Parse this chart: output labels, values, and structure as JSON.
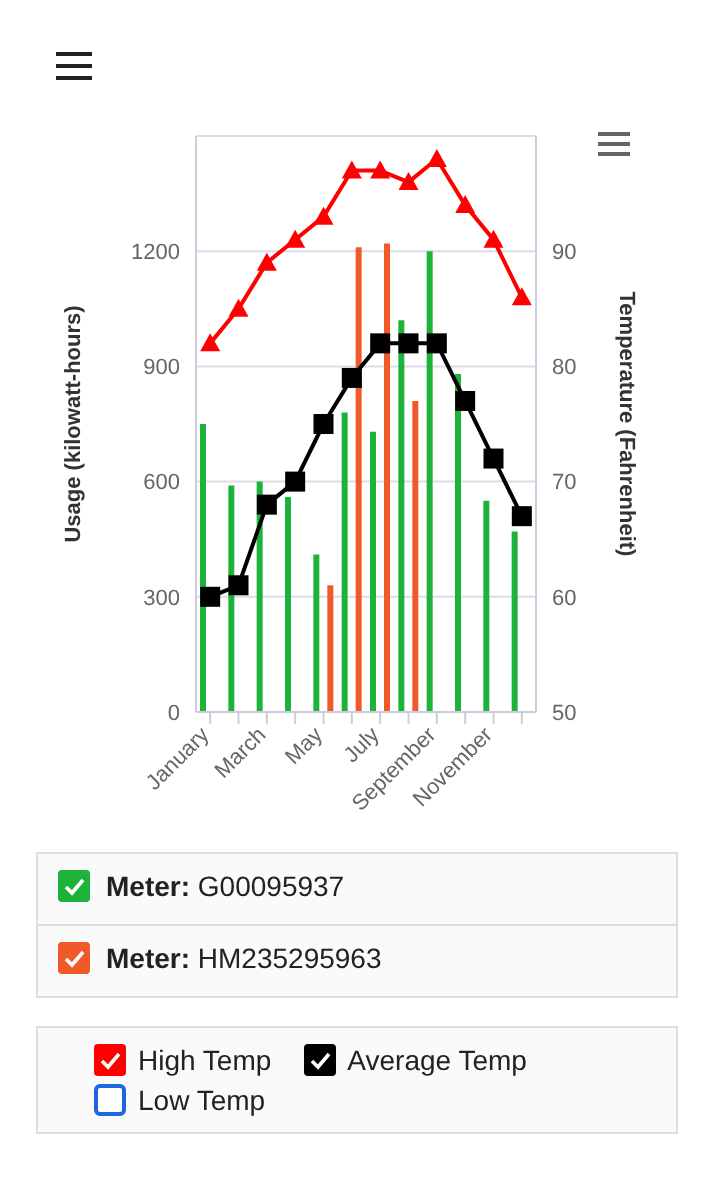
{
  "chart_data": {
    "type": "bar",
    "categories": [
      "January",
      null,
      "March",
      null,
      "May",
      null,
      "July",
      null,
      "September",
      null,
      "November",
      null
    ],
    "ylabel": "Usage (kilowatt-hours)",
    "y2label": "Temperature (Fahrenheit)",
    "ylim": [
      0,
      1500
    ],
    "yticks": [
      0,
      300,
      600,
      900,
      1200
    ],
    "y2lim": [
      50,
      100
    ],
    "y2ticks": [
      50,
      60,
      70,
      80,
      90
    ],
    "grid": "y",
    "legend": "bottom",
    "series": [
      {
        "name": "Meter: G00095937",
        "color": "#1db33a",
        "values": [
          750,
          590,
          600,
          560,
          410,
          780,
          730,
          1020,
          1200,
          880,
          550,
          470
        ]
      },
      {
        "name": "Meter: HM235295963",
        "color": "#f05a28",
        "values": [
          null,
          null,
          null,
          null,
          330,
          1210,
          1220,
          810,
          null,
          null,
          null,
          null
        ]
      },
      {
        "name": "High Temp",
        "type": "line",
        "axis": "y2",
        "marker": "triangle",
        "color": "#ff0000",
        "values": [
          82,
          85,
          89,
          91,
          93,
          97,
          97,
          96,
          98,
          94,
          91,
          86
        ]
      },
      {
        "name": "Average Temp",
        "type": "line",
        "axis": "y2",
        "marker": "square",
        "color": "#000000",
        "values": [
          60,
          61,
          68,
          70,
          75,
          79,
          82,
          82,
          82,
          77,
          72,
          67
        ]
      },
      {
        "name": "Low Temp",
        "type": "line",
        "axis": "y2",
        "marker": "circle",
        "color": "#1e66e0",
        "values": [
          null,
          null,
          null,
          null,
          null,
          null,
          null,
          null,
          null,
          null,
          null,
          null
        ]
      }
    ]
  }
}
